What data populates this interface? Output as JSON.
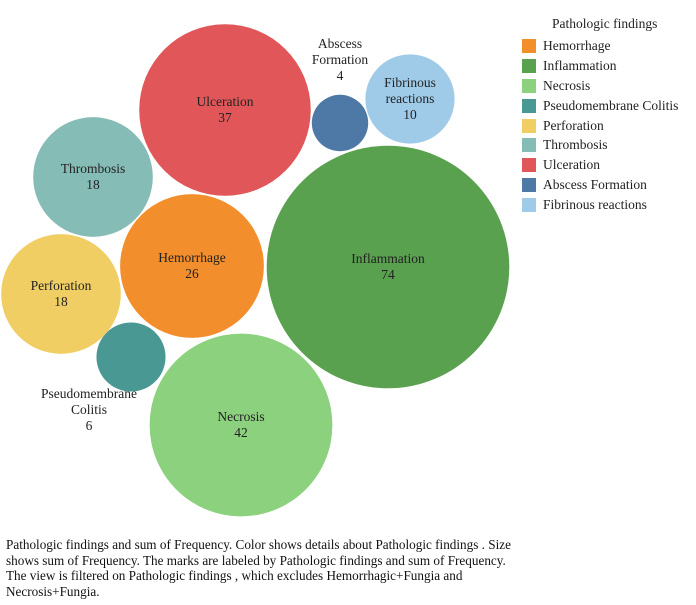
{
  "chart_data": {
    "type": "bubble",
    "measure": "sum of Frequency",
    "dimension": "Pathologic findings",
    "bubbles": [
      {
        "label": "Hemorrhage",
        "value": 26,
        "color": "#f28e2b"
      },
      {
        "label": "Inflammation",
        "value": 74,
        "color": "#59a14f"
      },
      {
        "label": "Necrosis",
        "value": 42,
        "color": "#8cd17d"
      },
      {
        "label": "Pseudomembrane Colitis",
        "value": 6,
        "color": "#499894"
      },
      {
        "label": "Perforation",
        "value": 18,
        "color": "#f1ce63"
      },
      {
        "label": "Thrombosis",
        "value": 18,
        "color": "#86bcb6"
      },
      {
        "label": "Ulceration",
        "value": 37,
        "color": "#e15759"
      },
      {
        "label": "Abscess Formation",
        "value": 4,
        "color": "#4e79a7"
      },
      {
        "label": "Fibrinous reactions",
        "value": 10,
        "color": "#a0cbe8"
      }
    ]
  },
  "legend": {
    "title": "Pathologic findings",
    "items": [
      {
        "label": "Hemorrhage",
        "color": "#f28e2b"
      },
      {
        "label": "Inflammation",
        "color": "#59a14f"
      },
      {
        "label": "Necrosis",
        "color": "#8cd17d"
      },
      {
        "label": "Pseudomembrane Colitis",
        "color": "#499894"
      },
      {
        "label": "Perforation",
        "color": "#f1ce63"
      },
      {
        "label": "Thrombosis",
        "color": "#86bcb6"
      },
      {
        "label": "Ulceration",
        "color": "#e15759"
      },
      {
        "label": "Abscess Formation",
        "color": "#4e79a7"
      },
      {
        "label": "Fibrinous reactions",
        "color": "#a0cbe8"
      }
    ]
  },
  "caption": "Pathologic findings  and sum of Frequency.  Color shows details about Pathologic findings .  Size shows sum of Frequency.  The marks are labeled by Pathologic findings  and sum of Frequency. The view is filtered on Pathologic findings , which excludes Hemorrhagic+Fungia and Necrosis+Fungia."
}
